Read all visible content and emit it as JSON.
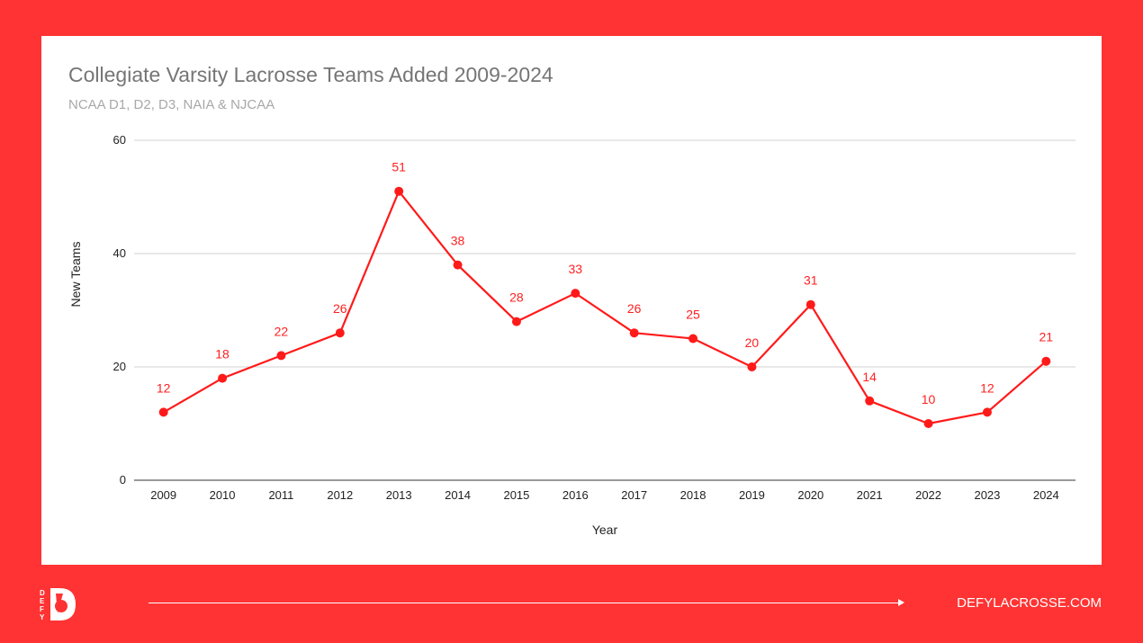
{
  "chart_data": {
    "type": "line",
    "title": "Collegiate Varsity Lacrosse Teams Added 2009-2024",
    "subtitle": "NCAA D1, D2, D3, NAIA & NJCAA",
    "xlabel": "Year",
    "ylabel": "New Teams",
    "ylim": [
      0,
      60
    ],
    "yticks": [
      0,
      20,
      40,
      60
    ],
    "grid": true,
    "categories": [
      "2009",
      "2010",
      "2011",
      "2012",
      "2013",
      "2014",
      "2015",
      "2016",
      "2017",
      "2018",
      "2019",
      "2020",
      "2021",
      "2022",
      "2023",
      "2024"
    ],
    "series": [
      {
        "values": [
          12,
          18,
          22,
          26,
          51,
          38,
          28,
          33,
          26,
          25,
          20,
          31,
          14,
          10,
          12,
          21
        ]
      }
    ],
    "color": "#ff1a1a"
  },
  "footer": {
    "logo_text": "DEFY",
    "website": "DEFYLACROSSE.COM"
  },
  "colors": {
    "background": "#ff3333",
    "card": "#ffffff"
  }
}
